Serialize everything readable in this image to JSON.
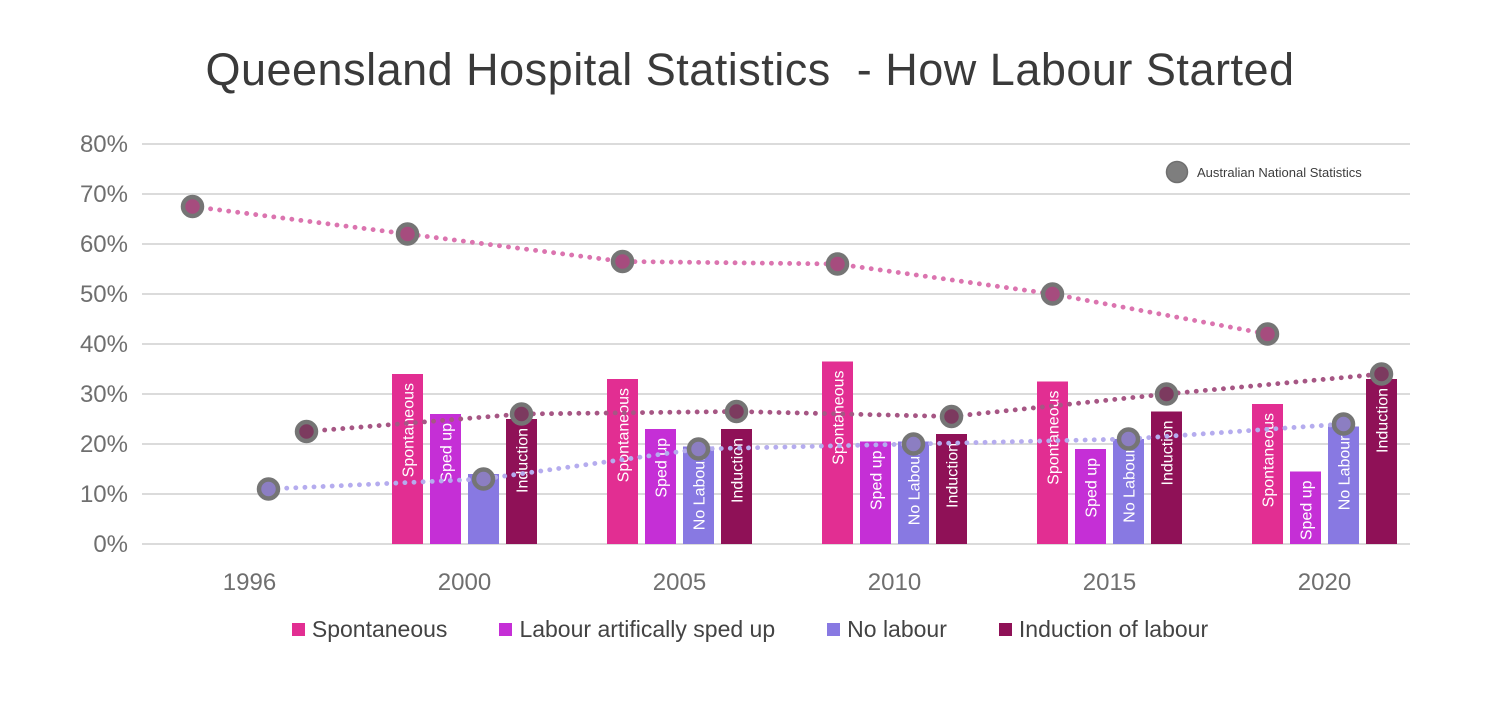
{
  "title": "Queensland Hospital Statistics  - How Labour Started",
  "overlay_legend": {
    "label": "Australian National Statistics",
    "marker_color": "#7e7e7e",
    "marker_border": "#6f6f6f"
  },
  "axis": {
    "y_ticks": [
      "0%",
      "10%",
      "20%",
      "30%",
      "40%",
      "50%",
      "60%",
      "70%",
      "80%"
    ],
    "x_ticks": [
      "1996",
      "2000",
      "2005",
      "2010",
      "2015",
      "2020"
    ]
  },
  "style": {
    "grid_color": "#dbdbdb",
    "dot_border_color": "#757575",
    "tick_color": "#6f6f6f"
  },
  "chart_data": {
    "type": "bar",
    "subtype": "grouped bars with dotted national-statistics overlay lines",
    "categories": [
      "1996",
      "2000",
      "2005",
      "2010",
      "2015",
      "2020"
    ],
    "ylabel": "",
    "xlabel": "",
    "ylim": [
      0,
      80
    ],
    "y_step": 10,
    "grid": true,
    "legend_position": "bottom",
    "bar_series": [
      {
        "name": "Spontaneous",
        "color": "#e22e92",
        "bar_label": "Spontaneous",
        "hide_bar_label_for": [],
        "values": [
          null,
          34,
          33,
          36.5,
          32.5,
          28
        ]
      },
      {
        "name": "Labour artifically sped up",
        "color": "#c52fd6",
        "bar_label": "Sped up",
        "hide_bar_label_for": [],
        "values": [
          null,
          26,
          23,
          20.5,
          19,
          14.5
        ]
      },
      {
        "name": "No labour",
        "color": "#8879e2",
        "bar_label": "No Labour",
        "hide_bar_label_for": [
          "2000"
        ],
        "values": [
          null,
          14,
          19.5,
          20.5,
          21,
          23.5
        ]
      },
      {
        "name": "Induction of labour",
        "color": "#8f1157",
        "bar_label": "Induction",
        "hide_bar_label_for": [],
        "values": [
          null,
          25,
          23,
          22,
          26.5,
          33
        ]
      }
    ],
    "line_series": [
      {
        "name": "Australian National Statistics - Spontaneous",
        "slot": 0,
        "line_color": "#db74af",
        "dot_fill": "#a64c7e",
        "values": [
          67.5,
          62,
          56.5,
          56,
          50,
          42
        ]
      },
      {
        "name": "Australian National Statistics - No labour",
        "slot": 2,
        "line_color": "#b5acee",
        "dot_fill": "#8c7ec2",
        "values": [
          11,
          13,
          19,
          20,
          21,
          24
        ]
      },
      {
        "name": "Australian National Statistics - Induction",
        "slot": 3,
        "line_color": "#a65684",
        "dot_fill": "#7c3a5f",
        "values": [
          22.5,
          26,
          26.5,
          25.5,
          30,
          34
        ]
      }
    ]
  }
}
